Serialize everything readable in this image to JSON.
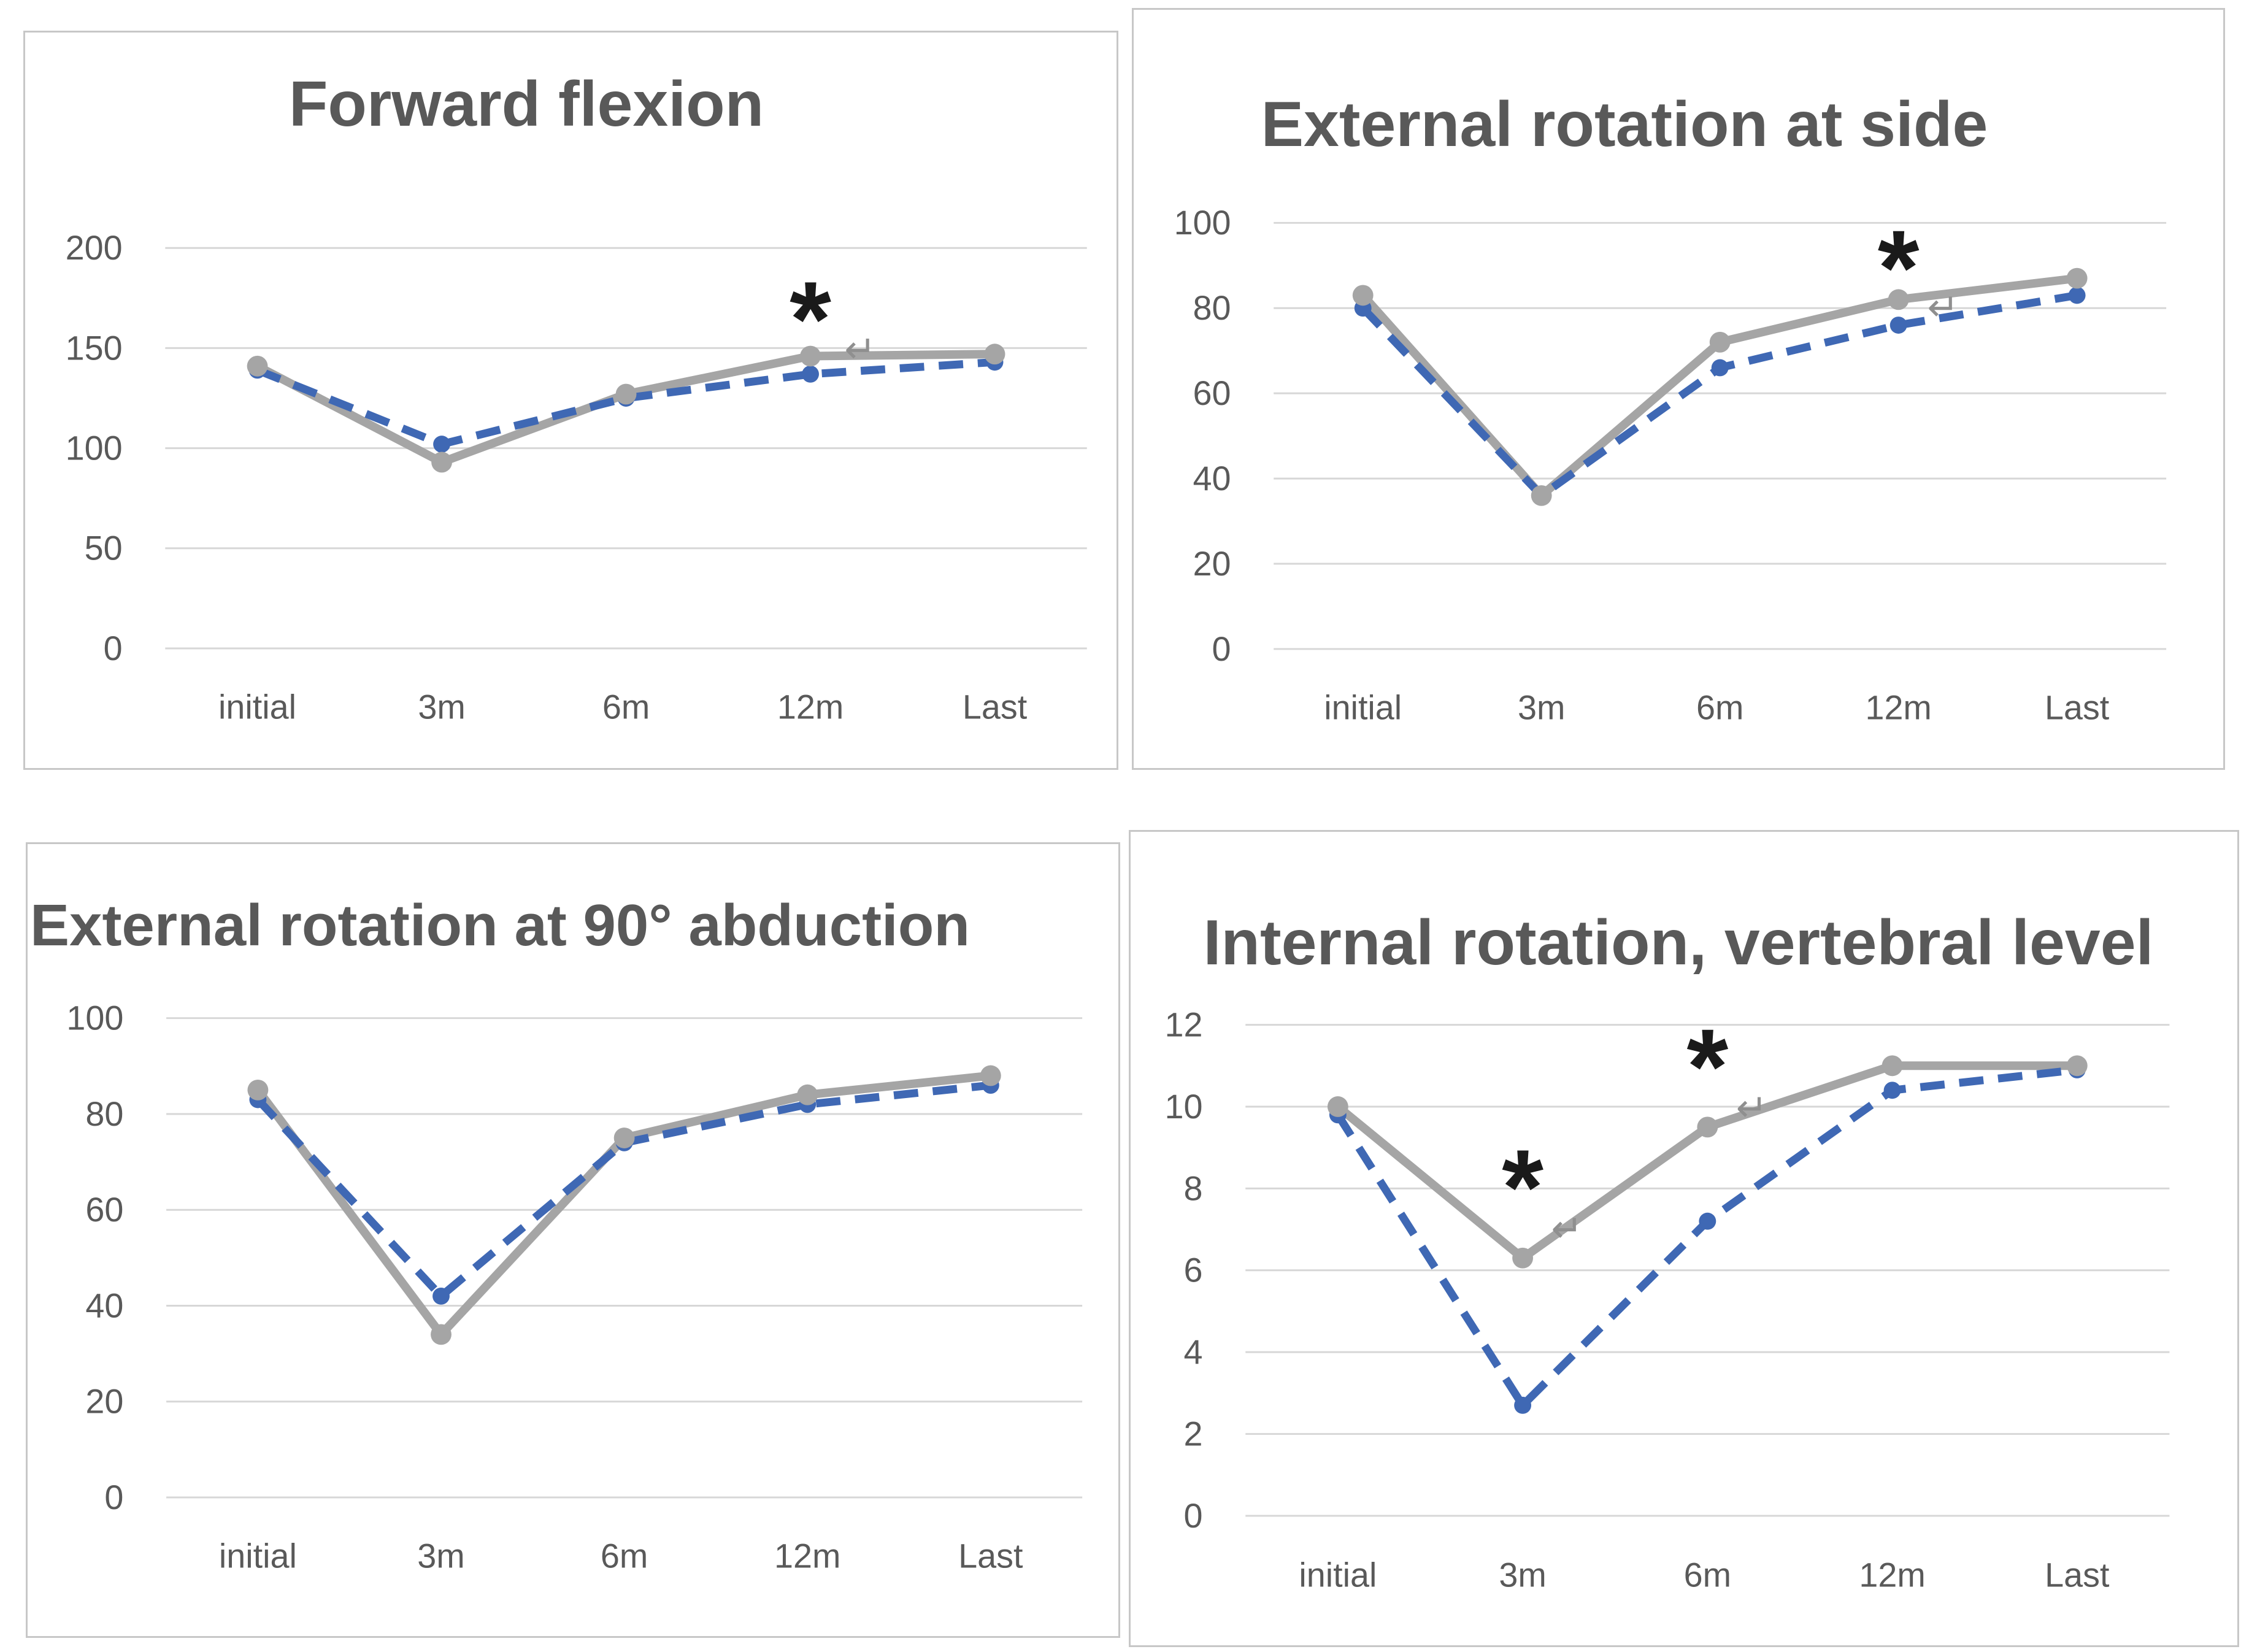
{
  "figure": {
    "background": "#ffffff",
    "panel_border_color": "#c7c7c7"
  },
  "colors": {
    "series_gray": "#a5a5a5",
    "series_blue": "#3f68b4",
    "title": "#595959",
    "tick": "#595959",
    "gridline": "#d7d7d7",
    "asterisk": "#1a1a1a",
    "artifact": "#8f8f8f"
  },
  "chart_data": [
    {
      "type": "line",
      "title": "Forward flexion",
      "categories": [
        "initial",
        "3m",
        "6m",
        "12m",
        "Last"
      ],
      "xlabel": "",
      "ylabel": "",
      "ylim": [
        0,
        200
      ],
      "y_ticks": [
        0,
        50,
        100,
        150,
        200
      ],
      "grid": true,
      "legend": "none",
      "series": [
        {
          "name": "gray solid",
          "style": "solid",
          "color_key": "series_gray",
          "values": [
            141,
            93,
            127,
            146,
            147
          ]
        },
        {
          "name": "blue dashed",
          "style": "dashed",
          "color_key": "series_blue",
          "values": [
            139,
            102,
            125,
            137,
            143
          ]
        }
      ],
      "annotations": [
        {
          "text": "*",
          "category_index": 3,
          "value": 172
        }
      ],
      "artifacts": [
        {
          "text": "↵",
          "category_index": 3,
          "offset": 0.27,
          "value": 149
        }
      ]
    },
    {
      "type": "line",
      "title": "External rotation at side",
      "categories": [
        "initial",
        "3m",
        "6m",
        "12m",
        "Last"
      ],
      "xlabel": "",
      "ylabel": "",
      "ylim": [
        0,
        100
      ],
      "y_ticks": [
        0,
        20,
        40,
        60,
        80,
        100
      ],
      "grid": true,
      "legend": "none",
      "series": [
        {
          "name": "gray solid",
          "style": "solid",
          "color_key": "series_gray",
          "values": [
            83,
            36,
            72,
            82,
            87
          ]
        },
        {
          "name": "blue dashed",
          "style": "dashed",
          "color_key": "series_blue",
          "values": [
            80,
            36,
            66,
            76,
            83
          ]
        }
      ],
      "annotations": [
        {
          "text": "*",
          "category_index": 3,
          "value": 93
        }
      ],
      "artifacts": [
        {
          "text": "↵",
          "category_index": 3,
          "offset": 0.25,
          "value": 80
        }
      ]
    },
    {
      "type": "line",
      "title": "External rotation at 90° abduction",
      "categories": [
        "initial",
        "3m",
        "6m",
        "12m",
        "Last"
      ],
      "xlabel": "",
      "ylabel": "",
      "ylim": [
        0,
        100
      ],
      "y_ticks": [
        0,
        20,
        40,
        60,
        80,
        100
      ],
      "grid": true,
      "legend": "none",
      "series": [
        {
          "name": "gray solid",
          "style": "solid",
          "color_key": "series_gray",
          "values": [
            85,
            34,
            75,
            84,
            88
          ]
        },
        {
          "name": "blue dashed",
          "style": "dashed",
          "color_key": "series_blue",
          "values": [
            83,
            42,
            74,
            82,
            86
          ]
        }
      ],
      "annotations": [],
      "artifacts": []
    },
    {
      "type": "line",
      "title": "Internal rotation, vertebral level",
      "categories": [
        "initial",
        "3m",
        "6m",
        "12m",
        "Last"
      ],
      "xlabel": "",
      "ylabel": "",
      "ylim": [
        0,
        12
      ],
      "y_ticks": [
        0,
        2,
        4,
        6,
        8,
        10,
        12
      ],
      "grid": true,
      "legend": "none",
      "series": [
        {
          "name": "gray solid",
          "style": "solid",
          "color_key": "series_gray",
          "values": [
            10,
            6.3,
            9.5,
            11,
            11
          ]
        },
        {
          "name": "blue dashed",
          "style": "dashed",
          "color_key": "series_blue",
          "values": [
            9.8,
            2.7,
            7.2,
            10.4,
            10.9
          ]
        }
      ],
      "annotations": [
        {
          "text": "*",
          "category_index": 1,
          "value": 8.4
        },
        {
          "text": "*",
          "category_index": 2,
          "value": 11.35
        }
      ],
      "artifacts": [
        {
          "text": "↵",
          "category_index": 1,
          "offset": 0.24,
          "value": 7.0
        },
        {
          "text": "↵",
          "category_index": 2,
          "offset": 0.24,
          "value": 9.95
        }
      ]
    }
  ]
}
